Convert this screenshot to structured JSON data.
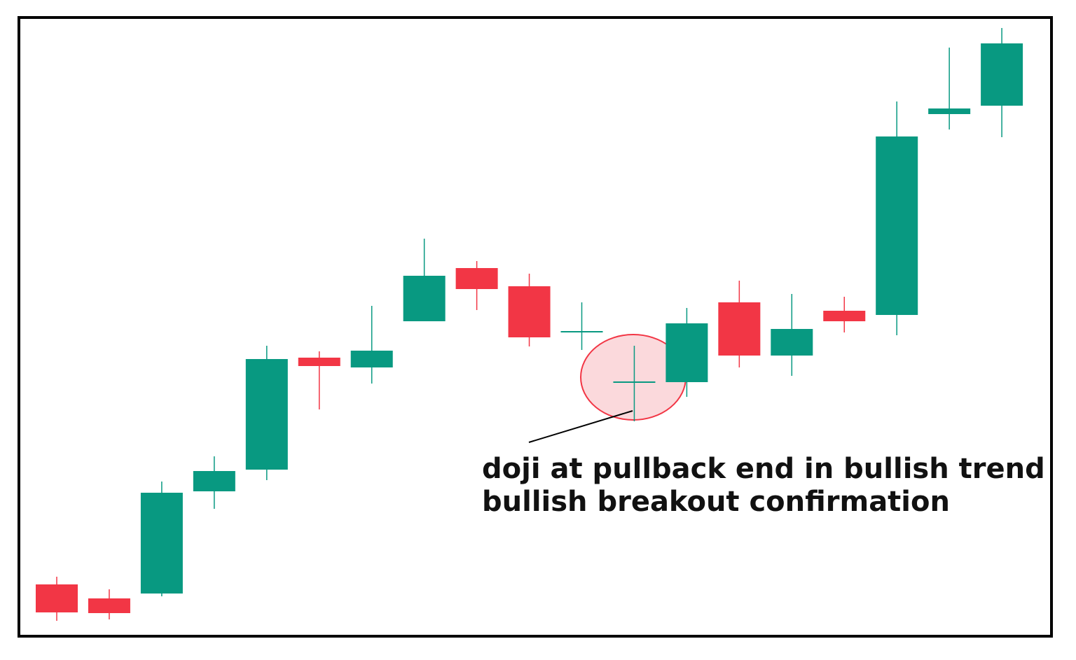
{
  "chart_data": {
    "type": "candlestick",
    "open": [
      73,
      53,
      60,
      206,
      237,
      397,
      383,
      449,
      525,
      499,
      433,
      361,
      362,
      476,
      400,
      464,
      458,
      745,
      757
    ],
    "high": [
      84,
      66,
      220,
      256,
      414,
      406,
      471,
      567,
      535,
      517,
      476,
      414,
      468,
      507,
      488,
      484,
      763,
      840,
      868
    ],
    "low": [
      21,
      23,
      56,
      181,
      222,
      323,
      360,
      449,
      465,
      413,
      408,
      306,
      341,
      383,
      371,
      433,
      429,
      723,
      712
    ],
    "close": [
      33,
      32,
      204,
      235,
      395,
      385,
      407,
      514,
      495,
      426,
      435,
      363,
      446,
      400,
      438,
      449,
      713,
      753,
      846
    ],
    "up_color": "#089981",
    "down_color": "#f23645",
    "ylim": [
      0,
      883
    ],
    "annotation": [
      "doji at pullback end in bullish trend",
      "bullish breakout confirmation"
    ]
  }
}
